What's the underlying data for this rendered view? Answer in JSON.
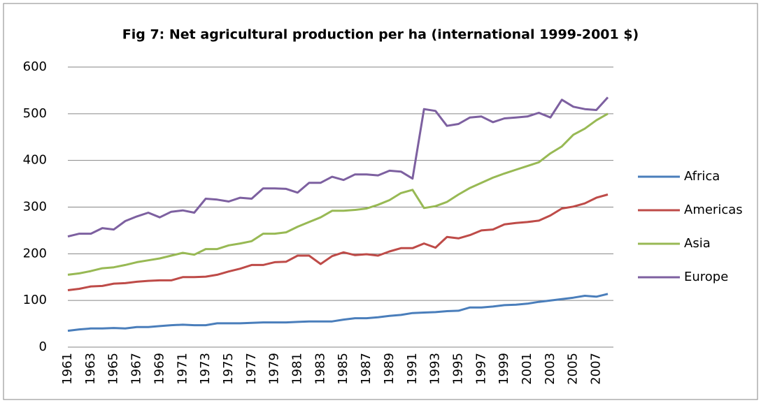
{
  "chart_data": {
    "type": "line",
    "title": "Fig 7: Net agricultural production per ha (international 1999-2001 $)",
    "categories": [
      "1961",
      null,
      "1963",
      null,
      "1965",
      null,
      "1967",
      null,
      "1969",
      null,
      "1971",
      null,
      "1973",
      null,
      "1975",
      null,
      "1977",
      null,
      "1979",
      null,
      "1981",
      null,
      "1983",
      null,
      "1985",
      null,
      "1987",
      null,
      "1989",
      null,
      "1991",
      null,
      "1993",
      null,
      "1995",
      null,
      "1997",
      null,
      "1999",
      null,
      "2001",
      null,
      "2003",
      null,
      "2005",
      null,
      "2007",
      null
    ],
    "series": [
      {
        "name": "Africa",
        "color": "#4a7ebb",
        "values": [
          35,
          38,
          40,
          40,
          41,
          40,
          43,
          43,
          45,
          47,
          48,
          47,
          47,
          51,
          51,
          51,
          52,
          53,
          53,
          53,
          54,
          55,
          55,
          55,
          59,
          62,
          62,
          64,
          67,
          69,
          73,
          74,
          75,
          77,
          78,
          85,
          85,
          87,
          90,
          91,
          93,
          97,
          100,
          103,
          106,
          110,
          108,
          114
        ]
      },
      {
        "name": "Americas",
        "color": "#be4b48",
        "values": [
          122,
          125,
          130,
          131,
          136,
          137,
          140,
          142,
          143,
          143,
          150,
          150,
          151,
          155,
          162,
          168,
          176,
          176,
          182,
          183,
          196,
          196,
          178,
          195,
          203,
          197,
          199,
          196,
          205,
          212,
          212,
          222,
          213,
          236,
          233,
          240,
          250,
          252,
          263,
          266,
          268,
          271,
          282,
          297,
          301,
          308,
          320,
          327
        ]
      },
      {
        "name": "Asia",
        "color": "#98b954",
        "values": [
          155,
          158,
          163,
          169,
          171,
          176,
          182,
          186,
          190,
          196,
          202,
          198,
          210,
          210,
          218,
          222,
          227,
          243,
          243,
          246,
          258,
          268,
          278,
          292,
          292,
          294,
          297,
          305,
          315,
          330,
          337,
          298,
          302,
          311,
          327,
          341,
          352,
          363,
          372,
          380,
          388,
          396,
          415,
          430,
          455,
          468,
          486,
          500
        ]
      },
      {
        "name": "Europe",
        "color": "#7d60a0",
        "values": [
          237,
          243,
          243,
          255,
          252,
          270,
          280,
          288,
          278,
          290,
          293,
          288,
          318,
          316,
          312,
          320,
          318,
          340,
          340,
          339,
          331,
          352,
          352,
          365,
          358,
          370,
          370,
          368,
          378,
          376,
          361,
          510,
          506,
          474,
          478,
          492,
          494,
          482,
          490,
          492,
          494,
          502,
          492,
          530,
          515,
          510,
          508,
          535
        ]
      }
    ],
    "ylim": [
      0,
      600
    ],
    "yticks": [
      0,
      100,
      200,
      300,
      400,
      500,
      600
    ],
    "grid": true,
    "legend": "right"
  }
}
